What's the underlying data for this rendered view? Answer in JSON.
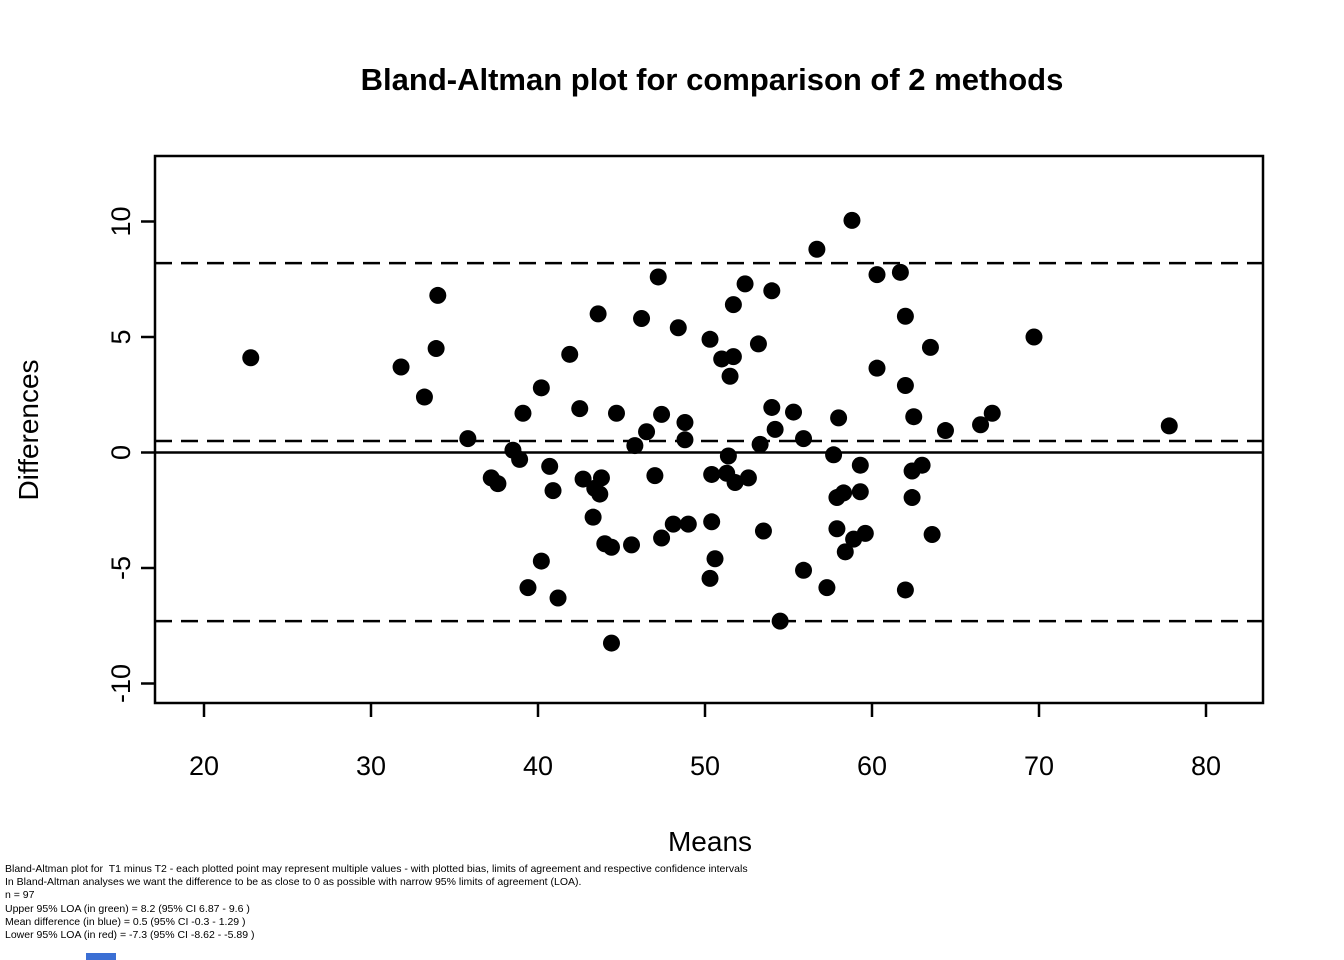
{
  "figure": {
    "title": "Bland-Altman plot for comparison of 2 methods",
    "xlabel": "Means",
    "ylabel": "Differences"
  },
  "chart_data": {
    "type": "scatter",
    "title": "Bland-Altman plot for comparison of 2 methods",
    "xlabel": "Means",
    "ylabel": "Differences",
    "xlim": [
      17.2,
      83.4
    ],
    "ylim": [
      -12.9,
      12.9
    ],
    "x_ticks": [
      20,
      30,
      40,
      50,
      60,
      70,
      80
    ],
    "y_ticks": [
      -10,
      -5,
      0,
      5,
      10
    ],
    "grid": false,
    "legend": "none",
    "n": 97,
    "marker": {
      "shape": "circle",
      "color": "#000000",
      "radius_px": 8.5
    },
    "reference_lines": [
      {
        "name": "upper-95-loa",
        "value": 8.2,
        "style": "dashed",
        "color": "#000000"
      },
      {
        "name": "mean-difference",
        "value": 0.5,
        "style": "dashed",
        "color": "#000000"
      },
      {
        "name": "zero-line",
        "value": 0,
        "style": "solid",
        "color": "#000000"
      },
      {
        "name": "lower-95-loa",
        "value": -7.3,
        "style": "dashed",
        "color": "#000000"
      }
    ],
    "points": [
      [
        22.8,
        4.1
      ],
      [
        31.8,
        3.7
      ],
      [
        33.2,
        2.4
      ],
      [
        33.9,
        4.5
      ],
      [
        34,
        6.8
      ],
      [
        39.1,
        1.7
      ],
      [
        58.8,
        10.05
      ],
      [
        56.7,
        8.8
      ],
      [
        60.3,
        7.7
      ],
      [
        47.2,
        7.6
      ],
      [
        52.4,
        7.3
      ],
      [
        54,
        7.0
      ],
      [
        51.7,
        6.4
      ],
      [
        43.6,
        6.0
      ],
      [
        46.2,
        5.8
      ],
      [
        48.4,
        5.4
      ],
      [
        50.3,
        4.9
      ],
      [
        53.2,
        4.7
      ],
      [
        41.9,
        4.25
      ],
      [
        51,
        4.05
      ],
      [
        51.7,
        4.15
      ],
      [
        51.5,
        3.3
      ],
      [
        60.3,
        3.65
      ],
      [
        40.2,
        2.8
      ],
      [
        42.5,
        1.9
      ],
      [
        44.7,
        1.7
      ],
      [
        47.4,
        1.65
      ],
      [
        54,
        1.95
      ],
      [
        55.3,
        1.75
      ],
      [
        58,
        1.5
      ],
      [
        48.8,
        1.3
      ],
      [
        46.5,
        0.9
      ],
      [
        54.2,
        1.0
      ],
      [
        61.7,
        7.8
      ],
      [
        62,
        5.9
      ],
      [
        63.5,
        4.55
      ],
      [
        69.7,
        5.0
      ],
      [
        62,
        2.9
      ],
      [
        62.5,
        1.55
      ],
      [
        67.2,
        1.7
      ],
      [
        66.5,
        1.2
      ],
      [
        64.4,
        0.95
      ],
      [
        77.8,
        1.15
      ],
      [
        35.8,
        0.6
      ],
      [
        38.5,
        0.1
      ],
      [
        38.9,
        -0.3
      ],
      [
        37.2,
        -1.1
      ],
      [
        37.6,
        -1.35
      ],
      [
        45.8,
        0.3
      ],
      [
        48.8,
        0.55
      ],
      [
        51.4,
        -0.15
      ],
      [
        53.3,
        0.35
      ],
      [
        55.9,
        0.6
      ],
      [
        57.7,
        -0.1
      ],
      [
        59.3,
        -0.55
      ],
      [
        40.7,
        -0.6
      ],
      [
        42.7,
        -1.15
      ],
      [
        43.8,
        -1.1
      ],
      [
        40.9,
        -1.65
      ],
      [
        43.4,
        -1.55
      ],
      [
        43.7,
        -1.8
      ],
      [
        47,
        -1.0
      ],
      [
        50.4,
        -0.95
      ],
      [
        51.3,
        -0.9
      ],
      [
        51.8,
        -1.3
      ],
      [
        52.6,
        -1.1
      ],
      [
        43.3,
        -2.8
      ],
      [
        44,
        -3.95
      ],
      [
        44.4,
        -4.1
      ],
      [
        45.6,
        -4.0
      ],
      [
        47.4,
        -3.7
      ],
      [
        48.1,
        -3.1
      ],
      [
        49,
        -3.1
      ],
      [
        50.4,
        -3.0
      ],
      [
        50.6,
        -4.6
      ],
      [
        50.3,
        -5.45
      ],
      [
        53.5,
        -3.4
      ],
      [
        40.2,
        -4.7
      ],
      [
        39.4,
        -5.85
      ],
      [
        41.2,
        -6.3
      ],
      [
        44.4,
        -8.25
      ],
      [
        54.5,
        -7.3
      ],
      [
        55.9,
        -5.1
      ],
      [
        57.3,
        -5.85
      ],
      [
        57.9,
        -3.3
      ],
      [
        57.9,
        -1.95
      ],
      [
        58.3,
        -1.75
      ],
      [
        59.3,
        -1.7
      ],
      [
        58.9,
        -3.75
      ],
      [
        59.6,
        -3.5
      ],
      [
        58.4,
        -4.3
      ],
      [
        62.4,
        -0.8
      ],
      [
        63,
        -0.55
      ],
      [
        62.4,
        -1.95
      ],
      [
        63.6,
        -3.55
      ],
      [
        62,
        -5.95
      ]
    ]
  },
  "footnote": {
    "lines": [
      "Bland-Altman plot for  T1 minus T2 - each plotted point may represent multiple values - with plotted bias, limits of agreement and respective confidence intervals",
      "In Bland-Altman analyses we want the difference to be as close to 0 as possible with narrow 95% limits of agreement (LOA).",
      "n = 97",
      "Upper 95% LOA (in green) = 8.2 (95% CI 6.87 - 9.6 )",
      "Mean difference (in blue) = 0.5 (95% CI -0.3 - 1.29 )",
      "Lower 95% LOA (in red) = -7.3 (95% CI -8.62 - -5.89 )"
    ]
  },
  "artifact": {
    "color": "#3b6fd4"
  }
}
